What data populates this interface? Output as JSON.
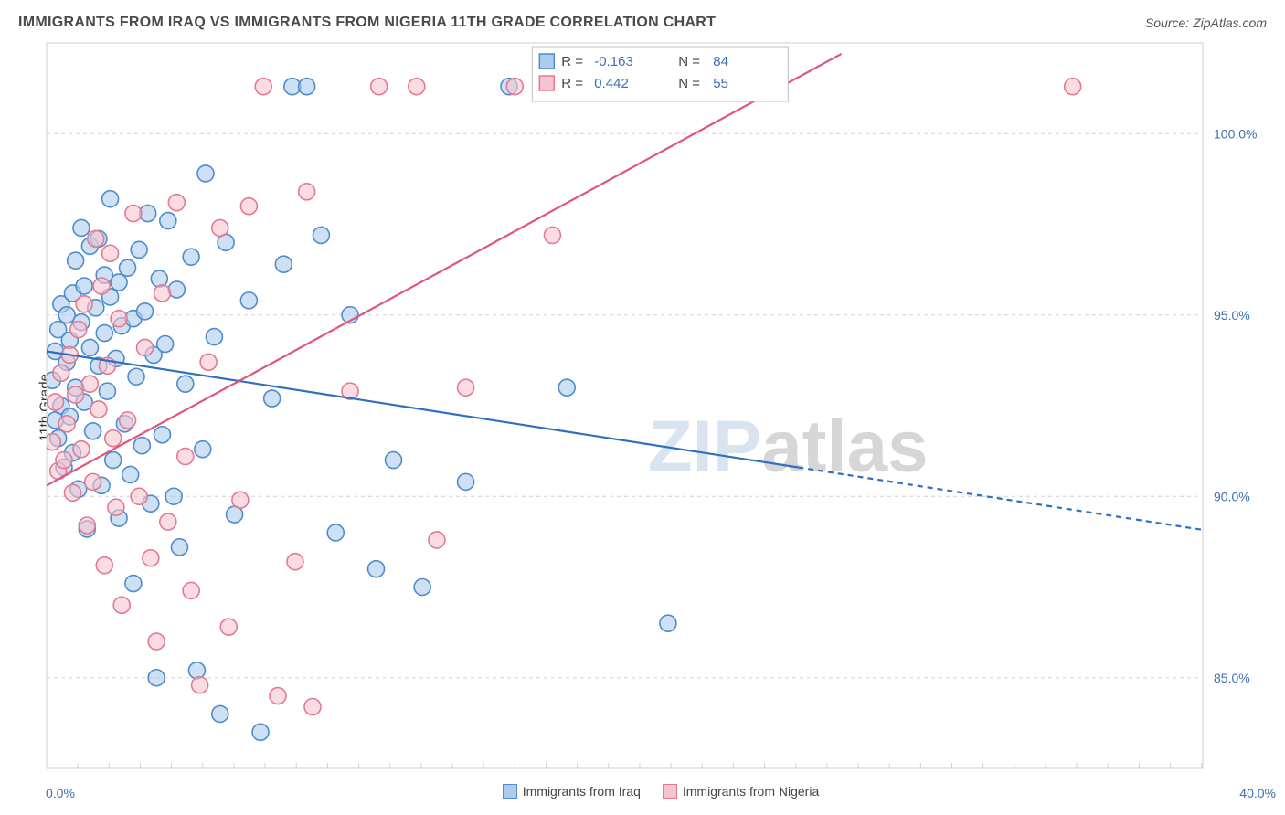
{
  "header": {
    "title": "IMMIGRANTS FROM IRAQ VS IMMIGRANTS FROM NIGERIA 11TH GRADE CORRELATION CHART",
    "source_label": "Source: ",
    "source_name": "ZipAtlas.com"
  },
  "ylabel": "11th Grade",
  "legend_bottom": {
    "series_a": "Immigrants from Iraq",
    "series_b": "Immigrants from Nigeria"
  },
  "watermark": {
    "a": "ZIP",
    "b": "atlas"
  },
  "chart": {
    "type": "scatter-with-regression",
    "background_color": "#ffffff",
    "plot_border_color": "#cfcfcf",
    "grid_color": "#d0d0d0",
    "grid_dash": "4,4",
    "marker_radius": 9,
    "marker_stroke_width": 1.6,
    "xlim": [
      0,
      40
    ],
    "x_ticks_minor_step_frac": 0.027,
    "x_labels": {
      "min": "0.0%",
      "max": "40.0%"
    },
    "ylim": [
      82.5,
      102.5
    ],
    "y_gridlines": [
      85.0,
      90.0,
      95.0,
      100.0
    ],
    "y_labels": [
      "85.0%",
      "90.0%",
      "95.0%",
      "100.0%"
    ],
    "y_tick_color": "#3b6fb6",
    "y_tick_fontsize": 14,
    "legend_box": {
      "border_color": "#bfbfbf",
      "bg": "#ffffff",
      "rows": [
        {
          "swatch_fill": "#aecbeb",
          "swatch_stroke": "#4f8ccc",
          "r_label": "R =",
          "r_val": "-0.163",
          "n_label": "N =",
          "n_val": "84"
        },
        {
          "swatch_fill": "#f6c4cf",
          "swatch_stroke": "#e27a94",
          "r_label": "R =",
          "r_val": "0.442",
          "n_label": "N =",
          "n_val": "55"
        }
      ],
      "text_color_static": "#444",
      "text_color_value": "#3b6fb6",
      "fontsize": 15
    },
    "series": [
      {
        "name": "iraq",
        "fill": "#aecbeb",
        "stroke": "#4f8ccc",
        "fill_opacity": 0.6,
        "regression": {
          "stroke": "#2e6fc0",
          "width": 2.2,
          "x0": 0,
          "y0": 94.0,
          "x1": 26,
          "y1": 90.8,
          "extrapolate_to": 40,
          "dash_after_data": "6,5"
        },
        "points": [
          [
            0.2,
            93.2
          ],
          [
            0.3,
            92.1
          ],
          [
            0.3,
            94.0
          ],
          [
            0.4,
            91.6
          ],
          [
            0.4,
            94.6
          ],
          [
            0.5,
            92.5
          ],
          [
            0.5,
            95.3
          ],
          [
            0.6,
            90.8
          ],
          [
            0.7,
            93.7
          ],
          [
            0.7,
            95.0
          ],
          [
            0.8,
            92.2
          ],
          [
            0.8,
            94.3
          ],
          [
            0.9,
            91.2
          ],
          [
            0.9,
            95.6
          ],
          [
            1.0,
            93.0
          ],
          [
            1.0,
            96.5
          ],
          [
            1.1,
            90.2
          ],
          [
            1.2,
            94.8
          ],
          [
            1.2,
            97.4
          ],
          [
            1.3,
            92.6
          ],
          [
            1.3,
            95.8
          ],
          [
            1.4,
            89.1
          ],
          [
            1.5,
            94.1
          ],
          [
            1.5,
            96.9
          ],
          [
            1.6,
            91.8
          ],
          [
            1.7,
            95.2
          ],
          [
            1.8,
            93.6
          ],
          [
            1.8,
            97.1
          ],
          [
            1.9,
            90.3
          ],
          [
            2.0,
            94.5
          ],
          [
            2.0,
            96.1
          ],
          [
            2.1,
            92.9
          ],
          [
            2.2,
            95.5
          ],
          [
            2.2,
            98.2
          ],
          [
            2.3,
            91.0
          ],
          [
            2.4,
            93.8
          ],
          [
            2.5,
            95.9
          ],
          [
            2.5,
            89.4
          ],
          [
            2.6,
            94.7
          ],
          [
            2.7,
            92.0
          ],
          [
            2.8,
            96.3
          ],
          [
            2.9,
            90.6
          ],
          [
            3.0,
            94.9
          ],
          [
            3.0,
            87.6
          ],
          [
            3.1,
            93.3
          ],
          [
            3.2,
            96.8
          ],
          [
            3.3,
            91.4
          ],
          [
            3.4,
            95.1
          ],
          [
            3.5,
            97.8
          ],
          [
            3.6,
            89.8
          ],
          [
            3.7,
            93.9
          ],
          [
            3.8,
            85.0
          ],
          [
            3.9,
            96.0
          ],
          [
            4.0,
            91.7
          ],
          [
            4.1,
            94.2
          ],
          [
            4.2,
            97.6
          ],
          [
            4.4,
            90.0
          ],
          [
            4.5,
            95.7
          ],
          [
            4.6,
            88.6
          ],
          [
            4.8,
            93.1
          ],
          [
            5.0,
            96.6
          ],
          [
            5.2,
            85.2
          ],
          [
            5.4,
            91.3
          ],
          [
            5.5,
            98.9
          ],
          [
            5.8,
            94.4
          ],
          [
            6.0,
            84.0
          ],
          [
            6.2,
            97.0
          ],
          [
            6.5,
            89.5
          ],
          [
            7.0,
            95.4
          ],
          [
            7.4,
            83.5
          ],
          [
            7.8,
            92.7
          ],
          [
            8.2,
            96.4
          ],
          [
            8.5,
            101.3
          ],
          [
            9.0,
            101.3
          ],
          [
            9.5,
            97.2
          ],
          [
            10.0,
            89.0
          ],
          [
            10.5,
            95.0
          ],
          [
            11.4,
            88.0
          ],
          [
            12.0,
            91.0
          ],
          [
            13.0,
            87.5
          ],
          [
            14.5,
            90.4
          ],
          [
            16.0,
            101.3
          ],
          [
            18.0,
            93.0
          ],
          [
            21.5,
            86.5
          ]
        ]
      },
      {
        "name": "nigeria",
        "fill": "#f6c4cf",
        "stroke": "#e27a94",
        "fill_opacity": 0.6,
        "regression": {
          "stroke": "#e0557b",
          "width": 2.2,
          "x0": 0,
          "y0": 90.3,
          "x1": 27.5,
          "y1": 102.2,
          "extrapolate_to": 27.5,
          "dash_after_data": ""
        },
        "points": [
          [
            0.2,
            91.5
          ],
          [
            0.3,
            92.6
          ],
          [
            0.4,
            90.7
          ],
          [
            0.5,
            93.4
          ],
          [
            0.6,
            91.0
          ],
          [
            0.7,
            92.0
          ],
          [
            0.8,
            93.9
          ],
          [
            0.9,
            90.1
          ],
          [
            1.0,
            92.8
          ],
          [
            1.1,
            94.6
          ],
          [
            1.2,
            91.3
          ],
          [
            1.3,
            95.3
          ],
          [
            1.4,
            89.2
          ],
          [
            1.5,
            93.1
          ],
          [
            1.6,
            90.4
          ],
          [
            1.7,
            97.1
          ],
          [
            1.8,
            92.4
          ],
          [
            1.9,
            95.8
          ],
          [
            2.0,
            88.1
          ],
          [
            2.1,
            93.6
          ],
          [
            2.2,
            96.7
          ],
          [
            2.3,
            91.6
          ],
          [
            2.4,
            89.7
          ],
          [
            2.5,
            94.9
          ],
          [
            2.6,
            87.0
          ],
          [
            2.8,
            92.1
          ],
          [
            3.0,
            97.8
          ],
          [
            3.2,
            90.0
          ],
          [
            3.4,
            94.1
          ],
          [
            3.6,
            88.3
          ],
          [
            3.8,
            86.0
          ],
          [
            4.0,
            95.6
          ],
          [
            4.2,
            89.3
          ],
          [
            4.5,
            98.1
          ],
          [
            4.8,
            91.1
          ],
          [
            5.0,
            87.4
          ],
          [
            5.3,
            84.8
          ],
          [
            5.6,
            93.7
          ],
          [
            6.0,
            97.4
          ],
          [
            6.3,
            86.4
          ],
          [
            6.7,
            89.9
          ],
          [
            7.0,
            98.0
          ],
          [
            7.5,
            101.3
          ],
          [
            8.0,
            84.5
          ],
          [
            8.6,
            88.2
          ],
          [
            9.0,
            98.4
          ],
          [
            9.2,
            84.2
          ],
          [
            10.5,
            92.9
          ],
          [
            11.5,
            101.3
          ],
          [
            12.8,
            101.3
          ],
          [
            13.5,
            88.8
          ],
          [
            14.5,
            93.0
          ],
          [
            16.2,
            101.3
          ],
          [
            17.5,
            97.2
          ],
          [
            35.5,
            101.3
          ]
        ]
      }
    ]
  }
}
